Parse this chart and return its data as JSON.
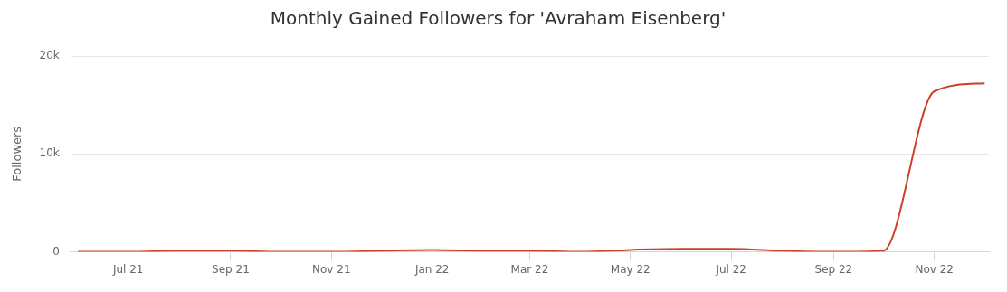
{
  "chart_data": {
    "type": "line",
    "title": "Monthly Gained Followers for 'Avraham Eisenberg'",
    "ylabel": "Followers",
    "x": [
      "2021-06-01",
      "2021-07-01",
      "2021-08-01",
      "2021-09-01",
      "2021-10-01",
      "2021-11-01",
      "2021-12-01",
      "2022-01-01",
      "2022-02-01",
      "2022-03-01",
      "2022-04-01",
      "2022-05-01",
      "2022-06-01",
      "2022-07-01",
      "2022-08-01",
      "2022-09-01",
      "2022-10-01",
      "2022-11-01",
      "2022-12-01"
    ],
    "series": [
      {
        "color": "#cc4125",
        "values": [
          0,
          0,
          100,
          100,
          0,
          0,
          100,
          200,
          100,
          100,
          0,
          200,
          300,
          300,
          100,
          0,
          100,
          16400,
          17200
        ]
      }
    ],
    "xlim": [
      "2021-05-27",
      "2022-12-04"
    ],
    "xticks": [
      {
        "value": "2021-07-01",
        "label": "Jul 21"
      },
      {
        "value": "2021-09-01",
        "label": "Sep 21"
      },
      {
        "value": "2021-11-01",
        "label": "Nov 21"
      },
      {
        "value": "2022-01-01",
        "label": "Jan 22"
      },
      {
        "value": "2022-03-01",
        "label": "Mar 22"
      },
      {
        "value": "2022-05-01",
        "label": "May 22"
      },
      {
        "value": "2022-07-01",
        "label": "Jul 22"
      },
      {
        "value": "2022-09-01",
        "label": "Sep 22"
      },
      {
        "value": "2022-11-01",
        "label": "Nov 22"
      }
    ],
    "ylim": [
      0,
      20000
    ],
    "yticks": [
      {
        "value": 0,
        "label": "0"
      },
      {
        "value": 10000,
        "label": "10k"
      },
      {
        "value": 20000,
        "label": "20k"
      }
    ],
    "grid": "y",
    "legend": false,
    "marker": "none",
    "line_style": "solid"
  }
}
